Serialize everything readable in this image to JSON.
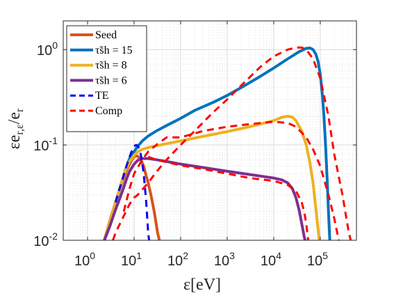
{
  "chart_data": {
    "type": "line",
    "xlabel": "ε[eV]",
    "ylabel": "εe_{r,ε}/e_r",
    "xscale": "log",
    "yscale": "log",
    "xlim": [
      0.3,
      600000
    ],
    "ylim": [
      0.01,
      2
    ],
    "grid": true,
    "legend_placement": "top-left",
    "x_ticks": [
      {
        "base": "10",
        "exp": "0",
        "value": 1
      },
      {
        "base": "10",
        "exp": "1",
        "value": 10
      },
      {
        "base": "10",
        "exp": "2",
        "value": 100
      },
      {
        "base": "10",
        "exp": "3",
        "value": 1000
      },
      {
        "base": "10",
        "exp": "4",
        "value": 10000
      },
      {
        "base": "10",
        "exp": "5",
        "value": 100000
      }
    ],
    "y_ticks": [
      {
        "base": "10",
        "exp": "-2",
        "value": 0.01
      },
      {
        "base": "10",
        "exp": "-1",
        "value": 0.1
      },
      {
        "base": "10",
        "exp": "0",
        "value": 1
      }
    ],
    "series": [
      {
        "name": "Seed",
        "color": "#d95319",
        "dash": false,
        "width": 4,
        "points": [
          [
            2.3,
            0.01
          ],
          [
            3,
            0.016
          ],
          [
            4,
            0.025
          ],
          [
            5,
            0.035
          ],
          [
            6,
            0.045
          ],
          [
            7,
            0.055
          ],
          [
            8,
            0.063
          ],
          [
            9,
            0.07
          ],
          [
            10,
            0.075
          ],
          [
            11,
            0.077
          ],
          [
            12,
            0.076
          ],
          [
            14,
            0.07
          ],
          [
            16,
            0.06
          ],
          [
            18,
            0.048
          ],
          [
            20,
            0.04
          ],
          [
            23,
            0.03
          ],
          [
            27,
            0.02
          ],
          [
            32,
            0.012
          ],
          [
            35,
            0.01
          ]
        ]
      },
      {
        "name": "τ̃sh = 15",
        "color": "#0072bd",
        "dash": false,
        "width": 4,
        "points": [
          [
            2.3,
            0.01
          ],
          [
            3,
            0.016
          ],
          [
            4,
            0.025
          ],
          [
            5,
            0.036
          ],
          [
            6,
            0.048
          ],
          [
            7,
            0.06
          ],
          [
            8,
            0.072
          ],
          [
            10,
            0.085
          ],
          [
            12,
            0.097
          ],
          [
            15,
            0.11
          ],
          [
            20,
            0.124
          ],
          [
            30,
            0.14
          ],
          [
            50,
            0.16
          ],
          [
            100,
            0.19
          ],
          [
            200,
            0.23
          ],
          [
            500,
            0.28
          ],
          [
            1000,
            0.33
          ],
          [
            2000,
            0.4
          ],
          [
            5000,
            0.52
          ],
          [
            10000,
            0.64
          ],
          [
            20000,
            0.8
          ],
          [
            35000,
            0.95
          ],
          [
            50000,
            1.03
          ],
          [
            60000,
            1.04
          ],
          [
            70000,
            1.0
          ],
          [
            80000,
            0.9
          ],
          [
            90000,
            0.75
          ],
          [
            100000,
            0.55
          ],
          [
            110000,
            0.35
          ],
          [
            120000,
            0.2
          ],
          [
            130000,
            0.1
          ],
          [
            140000,
            0.045
          ],
          [
            150000,
            0.02
          ],
          [
            160000,
            0.01
          ]
        ]
      },
      {
        "name": "τ̃sh = 8",
        "color": "#edb120",
        "dash": false,
        "width": 4,
        "points": [
          [
            2.3,
            0.01
          ],
          [
            3,
            0.016
          ],
          [
            4,
            0.025
          ],
          [
            5,
            0.036
          ],
          [
            6,
            0.048
          ],
          [
            7,
            0.058
          ],
          [
            8,
            0.067
          ],
          [
            10,
            0.078
          ],
          [
            12,
            0.085
          ],
          [
            15,
            0.09
          ],
          [
            20,
            0.094
          ],
          [
            50,
            0.103
          ],
          [
            100,
            0.11
          ],
          [
            300,
            0.123
          ],
          [
            1000,
            0.138
          ],
          [
            3000,
            0.155
          ],
          [
            10000,
            0.18
          ],
          [
            15000,
            0.195
          ],
          [
            20000,
            0.2
          ],
          [
            25000,
            0.196
          ],
          [
            30000,
            0.18
          ],
          [
            40000,
            0.14
          ],
          [
            50000,
            0.1
          ],
          [
            60000,
            0.065
          ],
          [
            70000,
            0.04
          ],
          [
            80000,
            0.022
          ],
          [
            90000,
            0.013
          ],
          [
            95000,
            0.01
          ]
        ]
      },
      {
        "name": "τ̃sh = 6",
        "color": "#7e2f8e",
        "dash": false,
        "width": 4,
        "points": [
          [
            2.3,
            0.01
          ],
          [
            3,
            0.014
          ],
          [
            4,
            0.021
          ],
          [
            5,
            0.028
          ],
          [
            6,
            0.036
          ],
          [
            7,
            0.045
          ],
          [
            8,
            0.053
          ],
          [
            10,
            0.063
          ],
          [
            12,
            0.069
          ],
          [
            15,
            0.072
          ],
          [
            20,
            0.072
          ],
          [
            30,
            0.07
          ],
          [
            50,
            0.067
          ],
          [
            100,
            0.063
          ],
          [
            300,
            0.058
          ],
          [
            1000,
            0.053
          ],
          [
            3000,
            0.049
          ],
          [
            10000,
            0.045
          ],
          [
            15000,
            0.043
          ],
          [
            20000,
            0.04
          ],
          [
            25000,
            0.035
          ],
          [
            30000,
            0.028
          ],
          [
            35000,
            0.021
          ],
          [
            40000,
            0.015
          ],
          [
            45000,
            0.011
          ],
          [
            47000,
            0.01
          ]
        ]
      },
      {
        "name": "TE",
        "color": "#0000ff",
        "dash": true,
        "width": 3,
        "points": [
          [
            4,
            0.025
          ],
          [
            5,
            0.036
          ],
          [
            6,
            0.048
          ],
          [
            7,
            0.062
          ],
          [
            8,
            0.075
          ],
          [
            9,
            0.087
          ],
          [
            10,
            0.097
          ],
          [
            11,
            0.1
          ],
          [
            12,
            0.098
          ],
          [
            13,
            0.09
          ],
          [
            14,
            0.078
          ],
          [
            15,
            0.064
          ],
          [
            16,
            0.05
          ],
          [
            17,
            0.037
          ],
          [
            18,
            0.027
          ],
          [
            19,
            0.018
          ],
          [
            20,
            0.012
          ],
          [
            21,
            0.01
          ]
        ]
      },
      {
        "name": "Comp",
        "color": "#ff0000",
        "dash": true,
        "width": 3,
        "points": [
          [
            3.5,
            0.01
          ],
          [
            4,
            0.012
          ],
          [
            5,
            0.015
          ],
          [
            6,
            0.018
          ],
          [
            7,
            0.021
          ],
          [
            8,
            0.024
          ],
          [
            9,
            0.026
          ],
          [
            10,
            0.028
          ],
          [
            12,
            0.03
          ],
          [
            15,
            0.034
          ],
          [
            20,
            0.04
          ],
          [
            30,
            0.052
          ],
          [
            50,
            0.07
          ],
          [
            100,
            0.1
          ],
          [
            200,
            0.14
          ],
          [
            500,
            0.22
          ],
          [
            1000,
            0.3
          ],
          [
            2000,
            0.42
          ],
          [
            5000,
            0.65
          ],
          [
            10000,
            0.85
          ],
          [
            20000,
            1.0
          ],
          [
            30000,
            1.05
          ],
          [
            40000,
            1.05
          ],
          [
            50000,
            1.0
          ],
          [
            70000,
            0.8
          ],
          [
            100000,
            0.5
          ],
          [
            150000,
            0.2
          ],
          [
            200000,
            0.08
          ],
          [
            300000,
            0.03
          ],
          [
            400000,
            0.013
          ],
          [
            450000,
            0.01
          ],
          [
            null,
            null
          ],
          [
            20,
            0.075
          ],
          [
            30,
            0.07
          ],
          [
            50,
            0.066
          ],
          [
            100,
            0.061
          ],
          [
            300,
            0.056
          ],
          [
            1000,
            0.05
          ],
          [
            3000,
            0.045
          ],
          [
            10000,
            0.042
          ],
          [
            20000,
            0.038
          ],
          [
            30000,
            0.033
          ],
          [
            40000,
            0.025
          ],
          [
            45000,
            0.02
          ],
          [
            50000,
            0.015
          ],
          [
            55000,
            0.01
          ],
          [
            null,
            null
          ],
          [
            6,
            0.02
          ],
          [
            8,
            0.035
          ],
          [
            10,
            0.05
          ],
          [
            15,
            0.07
          ],
          [
            20,
            0.085
          ],
          [
            30,
            0.1
          ],
          [
            50,
            0.12
          ],
          [
            100,
            0.12
          ],
          [
            300,
            0.14
          ],
          [
            1000,
            0.155
          ],
          [
            3000,
            0.165
          ],
          [
            10000,
            0.175
          ],
          [
            20000,
            0.17
          ],
          [
            30000,
            0.155
          ],
          [
            50000,
            0.12
          ],
          [
            70000,
            0.09
          ],
          [
            100000,
            0.06
          ],
          [
            150000,
            0.03
          ],
          [
            200000,
            0.017
          ],
          [
            250000,
            0.01
          ]
        ]
      }
    ]
  }
}
